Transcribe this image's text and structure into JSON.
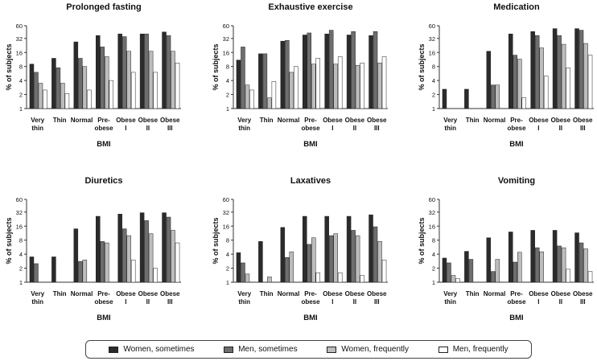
{
  "chart_data": {
    "type": "bar",
    "y_scale": "log2",
    "ylim": [
      1,
      60
    ],
    "y_ticks": [
      1,
      2,
      4,
      8,
      16,
      32,
      60
    ],
    "ylabel": "% of subjects",
    "xlabel": "BMI",
    "categories": [
      [
        "Very",
        "thin"
      ],
      [
        "Thin",
        ""
      ],
      [
        "Normal",
        ""
      ],
      [
        "Pre-",
        "obese"
      ],
      [
        "Obese",
        "I"
      ],
      [
        "Obese",
        "II"
      ],
      [
        "Obese",
        "III"
      ]
    ],
    "series_names": [
      "Women, sometimes",
      "Men, sometimes",
      "Women, frequently",
      "Men, frequently"
    ],
    "series_colors": [
      "#2b2b2b",
      "#6e6e6e",
      "#bdbdbd",
      "#ffffff"
    ],
    "panels": [
      {
        "title": "Prolonged fasting",
        "series": [
          [
            9,
            12,
            27,
            37,
            40,
            40,
            44
          ],
          [
            6,
            7.5,
            12,
            21,
            35,
            40,
            37
          ],
          [
            3.5,
            3.5,
            8,
            13,
            17,
            17,
            17
          ],
          [
            2.5,
            2.1,
            2.5,
            4,
            6,
            6,
            9.5
          ]
        ]
      },
      {
        "title": "Exhaustive exercise",
        "series": [
          [
            11,
            15,
            28,
            38,
            40,
            38,
            37
          ],
          [
            21,
            15,
            29,
            42,
            48,
            45,
            45
          ],
          [
            3.2,
            1.7,
            6,
            9,
            9,
            8.5,
            9.5
          ],
          [
            2.5,
            3.8,
            8,
            12,
            13,
            9.5,
            13
          ]
        ]
      },
      {
        "title": "Medication",
        "series": [
          [
            2.6,
            2.6,
            17,
            40,
            45,
            52,
            52
          ],
          [
            0,
            0,
            3.2,
            14,
            37,
            37,
            48
          ],
          [
            0,
            0,
            3.2,
            11.5,
            20,
            24,
            25
          ],
          [
            0,
            0,
            0,
            1.7,
            5,
            7.5,
            14
          ]
        ]
      },
      {
        "title": "Diuretics",
        "series": [
          [
            3.5,
            3.5,
            14,
            26,
            29,
            31,
            31
          ],
          [
            2.5,
            0,
            2.8,
            7.5,
            14,
            21,
            25
          ],
          [
            0,
            0,
            3,
            7,
            10,
            11,
            13
          ],
          [
            0,
            0,
            0,
            0,
            3,
            2,
            7
          ]
        ]
      },
      {
        "title": "Laxatives",
        "series": [
          [
            4.3,
            7.5,
            15,
            26,
            26,
            26,
            28
          ],
          [
            2.6,
            0,
            3.4,
            6.5,
            10,
            13,
            15.5
          ],
          [
            1.5,
            1.3,
            4.5,
            9,
            11,
            10,
            7.5
          ],
          [
            0,
            0,
            0,
            1.6,
            1.6,
            1.4,
            3
          ]
        ]
      },
      {
        "title": "Vomiting",
        "series": [
          [
            3.3,
            4.6,
            9,
            12,
            13,
            13,
            11.5
          ],
          [
            2.6,
            3.1,
            1.7,
            2.7,
            5.5,
            6,
            7
          ],
          [
            1.4,
            0,
            3.1,
            4.4,
            4.5,
            5.5,
            5.2
          ],
          [
            1.2,
            0,
            0,
            0,
            0,
            1.9,
            1.7
          ]
        ]
      }
    ]
  }
}
